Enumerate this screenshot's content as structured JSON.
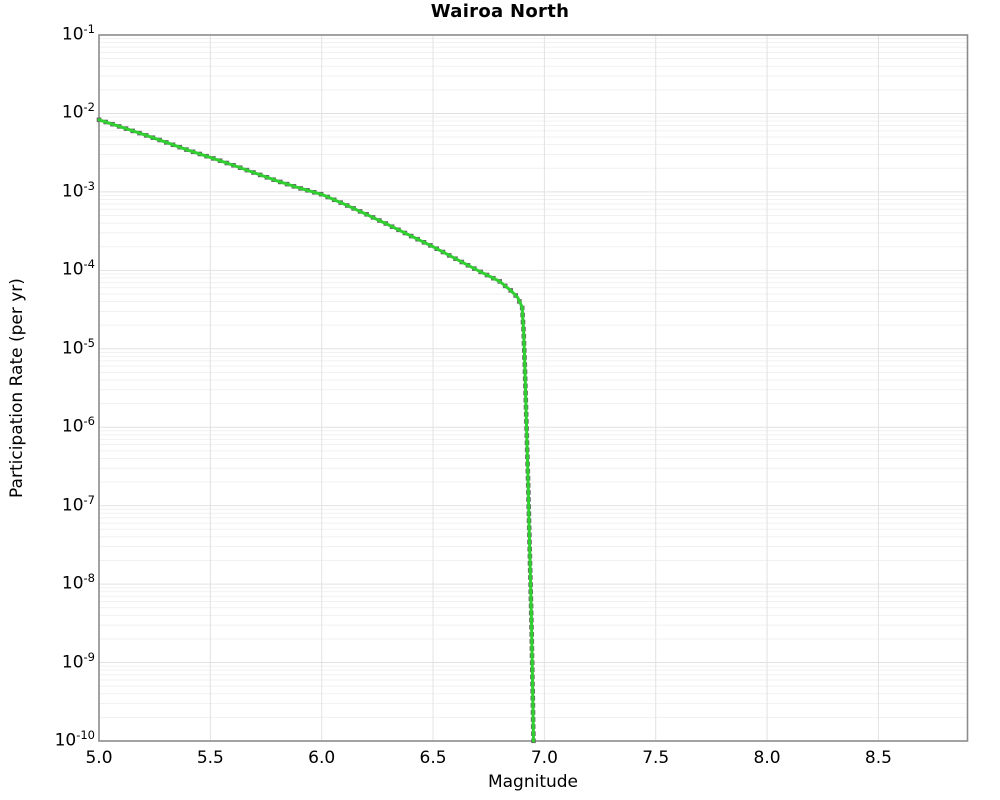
{
  "figure": {
    "kind": "matplotlib-style log plot"
  },
  "chart_data": {
    "type": "line",
    "title": "Wairoa North",
    "xlabel": "Magnitude",
    "ylabel": "Participation Rate (per yr)",
    "xlim": [
      5.0,
      8.9
    ],
    "ylog_lim": [
      -10,
      -1
    ],
    "x_ticks": [
      5.0,
      5.5,
      6.0,
      6.5,
      7.0,
      7.5,
      8.0,
      8.5
    ],
    "y_tick_exponents": [
      -1,
      -2,
      -3,
      -4,
      -5,
      -6,
      -7,
      -8,
      -9,
      -10
    ],
    "grid": {
      "major": true,
      "minor_log_y": true
    },
    "legend": "none",
    "colors": {
      "line": "#2fd02f",
      "marker": "#686868",
      "frame": "#8c8c8c",
      "grid_major": "#e2e2e2",
      "grid_minor": "#f1f1f1"
    },
    "series": [
      {
        "name": "participation-rate",
        "marker": "square",
        "points": [
          [
            5.0,
            0.0083
          ],
          [
            5.1,
            0.0067
          ],
          [
            5.2,
            0.0054
          ],
          [
            5.3,
            0.0043
          ],
          [
            5.4,
            0.0034
          ],
          [
            5.5,
            0.00275
          ],
          [
            5.6,
            0.0022
          ],
          [
            5.7,
            0.00174
          ],
          [
            5.8,
            0.00138
          ],
          [
            5.9,
            0.00112
          ],
          [
            6.0,
            0.00093
          ],
          [
            6.1,
            0.0007
          ],
          [
            6.2,
            0.00052
          ],
          [
            6.3,
            0.00038
          ],
          [
            6.4,
            0.000275
          ],
          [
            6.5,
            0.0002
          ],
          [
            6.6,
            0.000141
          ],
          [
            6.7,
            0.0001
          ],
          [
            6.75,
            8.5e-05
          ],
          [
            6.8,
            7.2e-05
          ],
          [
            6.85,
            5.5e-05
          ],
          [
            6.88,
            4.5e-05
          ],
          [
            6.9,
            3.4e-05
          ],
          [
            6.907,
            1.6e-05
          ],
          [
            6.912,
            6.3e-06
          ],
          [
            6.917,
            2e-06
          ],
          [
            6.922,
            6.3e-07
          ],
          [
            6.927,
            2e-07
          ],
          [
            6.932,
            5e-08
          ],
          [
            6.937,
            1.26e-08
          ],
          [
            6.942,
            3.2e-09
          ],
          [
            6.947,
            5e-10
          ],
          [
            6.951,
            1e-10
          ]
        ]
      }
    ]
  }
}
